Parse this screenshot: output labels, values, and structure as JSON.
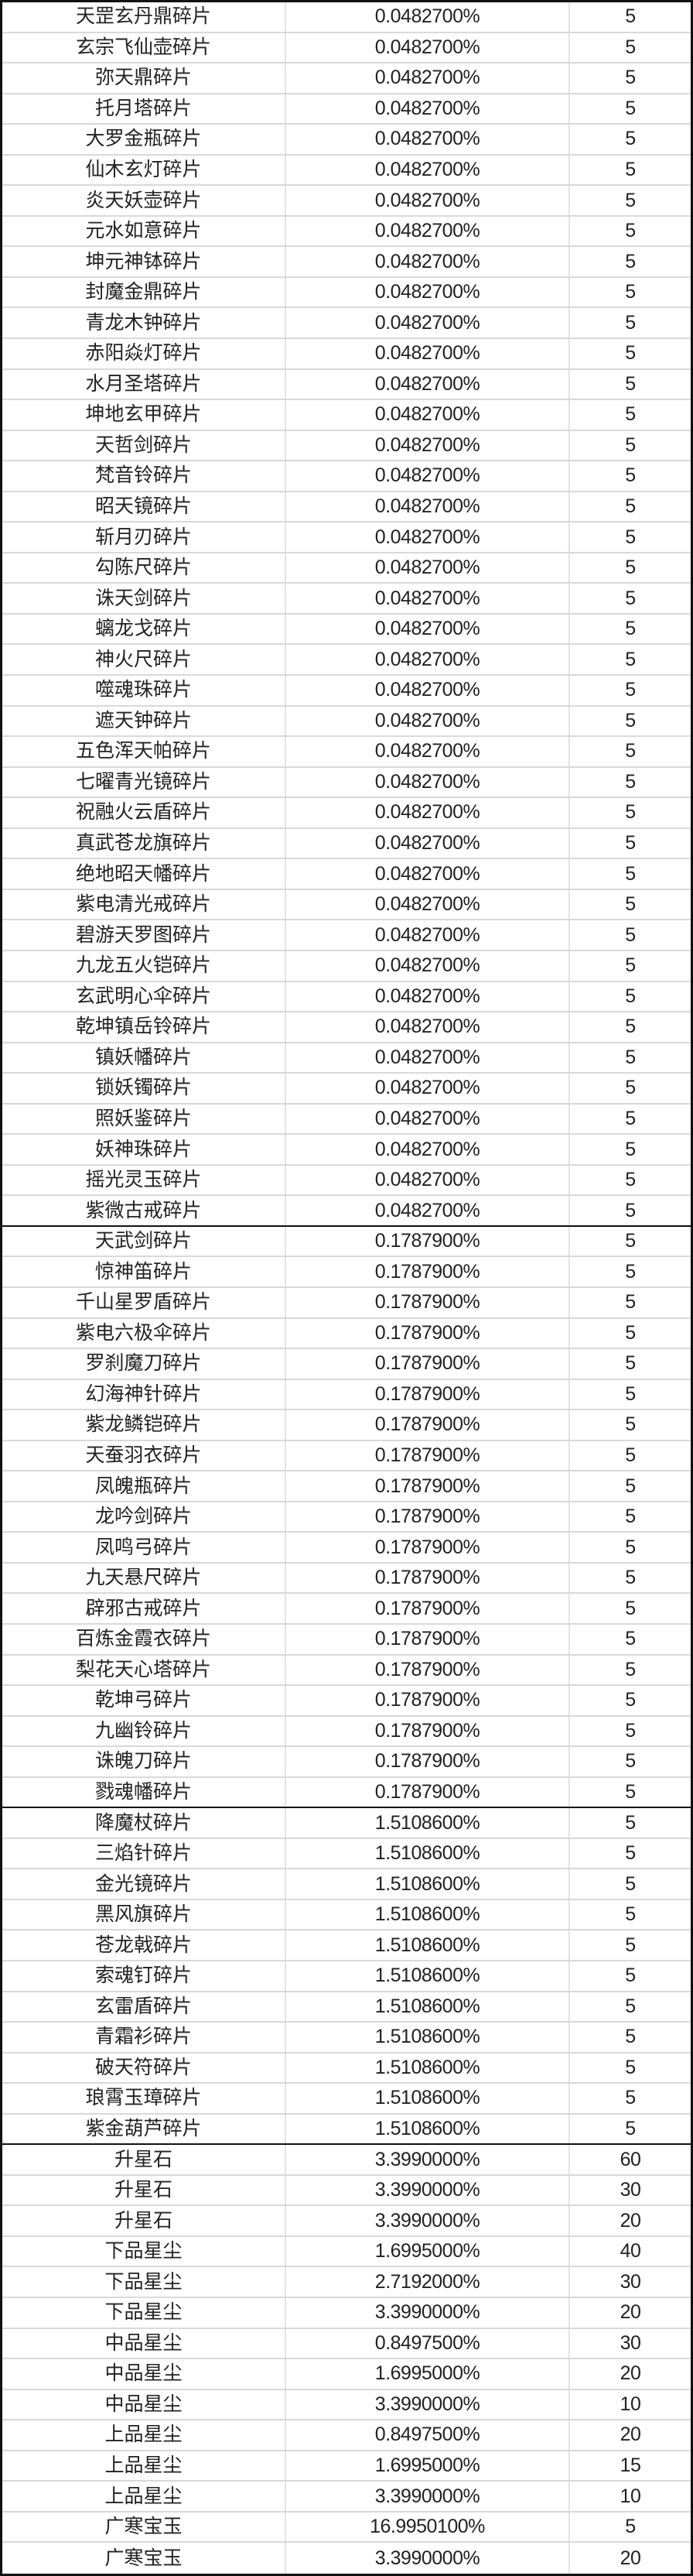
{
  "table": {
    "groups": [
      {
        "rows": [
          [
            "天罡玄丹鼎碎片",
            "0.0482700%",
            "5"
          ],
          [
            "玄宗飞仙壶碎片",
            "0.0482700%",
            "5"
          ],
          [
            "弥天鼎碎片",
            "0.0482700%",
            "5"
          ],
          [
            "托月塔碎片",
            "0.0482700%",
            "5"
          ],
          [
            "大罗金瓶碎片",
            "0.0482700%",
            "5"
          ],
          [
            "仙木玄灯碎片",
            "0.0482700%",
            "5"
          ],
          [
            "炎天妖壶碎片",
            "0.0482700%",
            "5"
          ],
          [
            "元水如意碎片",
            "0.0482700%",
            "5"
          ],
          [
            "坤元神钵碎片",
            "0.0482700%",
            "5"
          ],
          [
            "封魔金鼎碎片",
            "0.0482700%",
            "5"
          ],
          [
            "青龙木钟碎片",
            "0.0482700%",
            "5"
          ],
          [
            "赤阳焱灯碎片",
            "0.0482700%",
            "5"
          ],
          [
            "水月圣塔碎片",
            "0.0482700%",
            "5"
          ],
          [
            "坤地玄甲碎片",
            "0.0482700%",
            "5"
          ],
          [
            "天哲剑碎片",
            "0.0482700%",
            "5"
          ],
          [
            "梵音铃碎片",
            "0.0482700%",
            "5"
          ],
          [
            "昭天镜碎片",
            "0.0482700%",
            "5"
          ],
          [
            "斩月刃碎片",
            "0.0482700%",
            "5"
          ],
          [
            "勾陈尺碎片",
            "0.0482700%",
            "5"
          ],
          [
            "诛天剑碎片",
            "0.0482700%",
            "5"
          ],
          [
            "螭龙戈碎片",
            "0.0482700%",
            "5"
          ],
          [
            "神火尺碎片",
            "0.0482700%",
            "5"
          ],
          [
            "噬魂珠碎片",
            "0.0482700%",
            "5"
          ],
          [
            "遮天钟碎片",
            "0.0482700%",
            "5"
          ],
          [
            "五色浑天帕碎片",
            "0.0482700%",
            "5"
          ],
          [
            "七曜青光镜碎片",
            "0.0482700%",
            "5"
          ],
          [
            "祝融火云盾碎片",
            "0.0482700%",
            "5"
          ],
          [
            "真武苍龙旗碎片",
            "0.0482700%",
            "5"
          ],
          [
            "绝地昭天幡碎片",
            "0.0482700%",
            "5"
          ],
          [
            "紫电清光戒碎片",
            "0.0482700%",
            "5"
          ],
          [
            "碧游天罗图碎片",
            "0.0482700%",
            "5"
          ],
          [
            "九龙五火铠碎片",
            "0.0482700%",
            "5"
          ],
          [
            "玄武明心伞碎片",
            "0.0482700%",
            "5"
          ],
          [
            "乾坤镇岳铃碎片",
            "0.0482700%",
            "5"
          ],
          [
            "镇妖幡碎片",
            "0.0482700%",
            "5"
          ],
          [
            "锁妖镯碎片",
            "0.0482700%",
            "5"
          ],
          [
            "照妖鉴碎片",
            "0.0482700%",
            "5"
          ],
          [
            "妖神珠碎片",
            "0.0482700%",
            "5"
          ],
          [
            "摇光灵玉碎片",
            "0.0482700%",
            "5"
          ],
          [
            "紫微古戒碎片",
            "0.0482700%",
            "5"
          ]
        ]
      },
      {
        "rows": [
          [
            "天武剑碎片",
            "0.1787900%",
            "5"
          ],
          [
            "惊神笛碎片",
            "0.1787900%",
            "5"
          ],
          [
            "千山星罗盾碎片",
            "0.1787900%",
            "5"
          ],
          [
            "紫电六极伞碎片",
            "0.1787900%",
            "5"
          ],
          [
            "罗刹魔刀碎片",
            "0.1787900%",
            "5"
          ],
          [
            "幻海神针碎片",
            "0.1787900%",
            "5"
          ],
          [
            "紫龙鳞铠碎片",
            "0.1787900%",
            "5"
          ],
          [
            "天蚕羽衣碎片",
            "0.1787900%",
            "5"
          ],
          [
            "凤魄瓶碎片",
            "0.1787900%",
            "5"
          ],
          [
            "龙吟剑碎片",
            "0.1787900%",
            "5"
          ],
          [
            "凤鸣弓碎片",
            "0.1787900%",
            "5"
          ],
          [
            "九天悬尺碎片",
            "0.1787900%",
            "5"
          ],
          [
            "辟邪古戒碎片",
            "0.1787900%",
            "5"
          ],
          [
            "百炼金霞衣碎片",
            "0.1787900%",
            "5"
          ],
          [
            "梨花天心塔碎片",
            "0.1787900%",
            "5"
          ],
          [
            "乾坤弓碎片",
            "0.1787900%",
            "5"
          ],
          [
            "九幽铃碎片",
            "0.1787900%",
            "5"
          ],
          [
            "诛魄刀碎片",
            "0.1787900%",
            "5"
          ],
          [
            "戮魂幡碎片",
            "0.1787900%",
            "5"
          ]
        ]
      },
      {
        "rows": [
          [
            "降魔杖碎片",
            "1.5108600%",
            "5"
          ],
          [
            "三焰针碎片",
            "1.5108600%",
            "5"
          ],
          [
            "金光镜碎片",
            "1.5108600%",
            "5"
          ],
          [
            "黑风旗碎片",
            "1.5108600%",
            "5"
          ],
          [
            "苍龙戟碎片",
            "1.5108600%",
            "5"
          ],
          [
            "索魂钉碎片",
            "1.5108600%",
            "5"
          ],
          [
            "玄雷盾碎片",
            "1.5108600%",
            "5"
          ],
          [
            "青霜衫碎片",
            "1.5108600%",
            "5"
          ],
          [
            "破天符碎片",
            "1.5108600%",
            "5"
          ],
          [
            "琅霄玉璋碎片",
            "1.5108600%",
            "5"
          ],
          [
            "紫金葫芦碎片",
            "1.5108600%",
            "5"
          ]
        ]
      },
      {
        "rows": [
          [
            "升星石",
            "3.3990000%",
            "60"
          ],
          [
            "升星石",
            "3.3990000%",
            "30"
          ],
          [
            "升星石",
            "3.3990000%",
            "20"
          ],
          [
            "下品星尘",
            "1.6995000%",
            "40"
          ],
          [
            "下品星尘",
            "2.7192000%",
            "30"
          ],
          [
            "下品星尘",
            "3.3990000%",
            "20"
          ],
          [
            "中品星尘",
            "0.8497500%",
            "30"
          ],
          [
            "中品星尘",
            "1.6995000%",
            "20"
          ],
          [
            "中品星尘",
            "3.3990000%",
            "10"
          ],
          [
            "上品星尘",
            "0.8497500%",
            "20"
          ],
          [
            "上品星尘",
            "1.6995000%",
            "15"
          ],
          [
            "上品星尘",
            "3.3990000%",
            "10"
          ],
          [
            "广寒宝玉",
            "16.9950100%",
            "5"
          ],
          [
            "广寒宝玉",
            "3.3990000%",
            "20"
          ]
        ]
      }
    ]
  }
}
